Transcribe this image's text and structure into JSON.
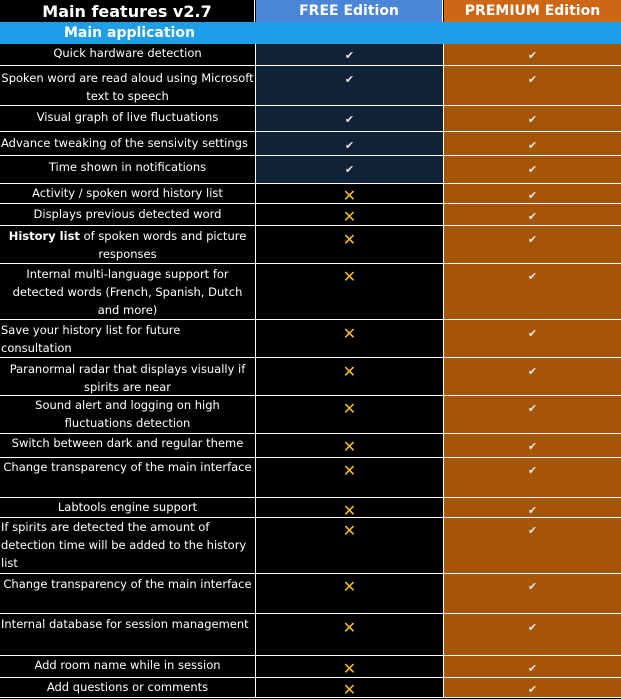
{
  "header": {
    "features_title": "Main features v2.7",
    "free_title": "FREE Edition",
    "premium_title": "PREMIUM Edition"
  },
  "section": {
    "title": "Main application"
  },
  "icons": {
    "check": "✔",
    "cross": "✕"
  },
  "colors": {
    "free_header": "#4a86d8",
    "premium_header": "#cd6715",
    "premium_cells": "#a65406",
    "section_bar": "#1e9ee8",
    "free_available_cells": "#112237",
    "cross_mark": "#f0be2a"
  },
  "rows": [
    {
      "feature": "Quick hardware detection",
      "free": "check",
      "premium": "check"
    },
    {
      "feature": "Spoken  word are read aloud using Microsoft text to speech",
      "free": "check",
      "premium": "check"
    },
    {
      "feature": "Visual graph of live fluctuations",
      "free": "check",
      "premium": "check"
    },
    {
      "feature": "Advance tweaking of the sensivity settings",
      "free": "check",
      "premium": "check"
    },
    {
      "feature": "Time shown in notifications",
      "free": "check",
      "premium": "check"
    },
    {
      "feature": "Activity / spoken word history list",
      "free": "cross",
      "premium": "check"
    },
    {
      "feature": "Displays previous detected word",
      "free": "cross",
      "premium": "check"
    },
    {
      "feature_bold": "History list",
      "feature": " of spoken words and picture responses",
      "free": "cross",
      "premium": "check"
    },
    {
      "feature": "Internal multi-language support for detected words (French, Spanish, Dutch and more)",
      "free": "cross",
      "premium": "check"
    },
    {
      "feature": "Save your history list for future consultation",
      "free": "cross",
      "premium": "check"
    },
    {
      "feature": "Paranormal radar that displays visually if spirits are near",
      "free": "cross",
      "premium": "check"
    },
    {
      "feature": "Sound alert and logging on high fluctuations detection",
      "free": "cross",
      "premium": "check"
    },
    {
      "feature": "Switch between dark and regular theme",
      "free": "cross",
      "premium": "check"
    },
    {
      "feature": "Change transparency of the main interface",
      "free": "cross",
      "premium": "check"
    },
    {
      "feature": "Labtools engine support",
      "free": "cross",
      "premium": "check"
    },
    {
      "feature": "If spirits are detected the amount of detection time will be added to the history list",
      "free": "cross",
      "premium": "check"
    },
    {
      "feature": "Change transparency of the main interface",
      "free": "cross",
      "premium": "check"
    },
    {
      "feature": "Internal database for session management",
      "free": "cross",
      "premium": "check"
    },
    {
      "feature": "Add room name while in session",
      "free": "cross",
      "premium": "check"
    },
    {
      "feature": "Add questions or comments",
      "free": "cross",
      "premium": "check"
    }
  ]
}
